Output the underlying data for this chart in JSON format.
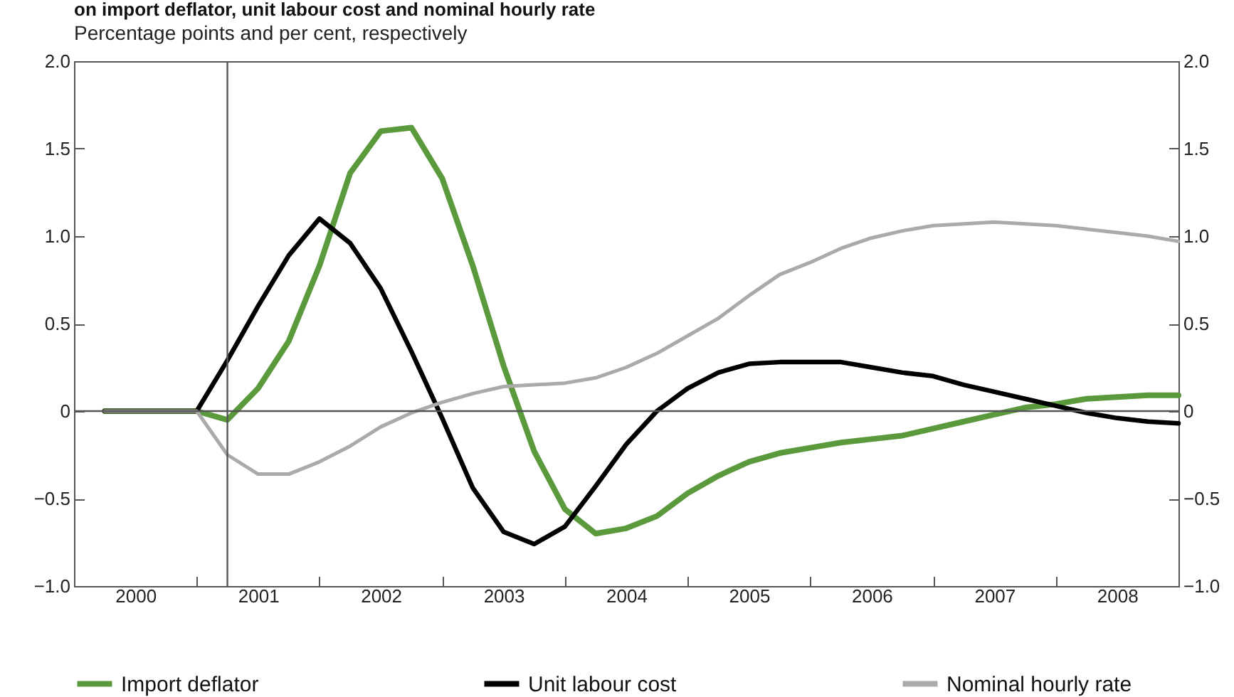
{
  "chart_data": {
    "type": "line",
    "title": "on import deflator, unit labour cost and nominal hourly rate",
    "subtitle": "Percentage points and per cent, respectively",
    "x": [
      2000.25,
      2000.5,
      2000.75,
      2001,
      2001.25,
      2001.5,
      2001.75,
      2002,
      2002.25,
      2002.5,
      2002.75,
      2003,
      2003.25,
      2003.5,
      2003.75,
      2004,
      2004.25,
      2004.5,
      2004.75,
      2005,
      2005.25,
      2005.5,
      2005.75,
      2006,
      2006.25,
      2006.5,
      2006.75,
      2007,
      2007.25,
      2007.5,
      2007.75,
      2008,
      2008.25,
      2008.5,
      2008.75,
      2009
    ],
    "series": [
      {
        "name": "Import deflator",
        "color": "#5b9a3c",
        "values": [
          0,
          0,
          0,
          0,
          -0.05,
          0.13,
          0.4,
          0.83,
          1.36,
          1.6,
          1.62,
          1.33,
          0.83,
          0.26,
          -0.23,
          -0.56,
          -0.7,
          -0.67,
          -0.6,
          -0.47,
          -0.37,
          -0.29,
          -0.24,
          -0.21,
          -0.18,
          -0.16,
          -0.14,
          -0.1,
          -0.06,
          -0.02,
          0.02,
          0.04,
          0.07,
          0.08,
          0.09,
          0.09
        ]
      },
      {
        "name": "Unit labour cost",
        "color": "#000000",
        "values": [
          0,
          0,
          0,
          0,
          0.29,
          0.6,
          0.89,
          1.1,
          0.96,
          0.7,
          0.34,
          -0.04,
          -0.44,
          -0.69,
          -0.76,
          -0.66,
          -0.43,
          -0.19,
          0,
          0.13,
          0.22,
          0.27,
          0.28,
          0.28,
          0.28,
          0.25,
          0.22,
          0.2,
          0.15,
          0.11,
          0.07,
          0.03,
          -0.01,
          -0.04,
          -0.06,
          -0.07
        ]
      },
      {
        "name": "Nominal hourly rate",
        "color": "#aaaaaa",
        "values": [
          0,
          0,
          0,
          0,
          -0.25,
          -0.36,
          -0.36,
          -0.29,
          -0.2,
          -0.09,
          -0.01,
          0.05,
          0.1,
          0.14,
          0.15,
          0.16,
          0.19,
          0.25,
          0.33,
          0.43,
          0.53,
          0.66,
          0.78,
          0.85,
          0.93,
          0.99,
          1.03,
          1.06,
          1.07,
          1.08,
          1.07,
          1.06,
          1.04,
          1.02,
          1.0,
          0.97
        ]
      }
    ],
    "xlim": [
      2000,
      2009
    ],
    "xticks": [
      {
        "value": 2000.5,
        "label": "2000"
      },
      {
        "value": 2001,
        "label": null
      },
      {
        "value": 2001.5,
        "label": "2001"
      },
      {
        "value": 2002,
        "label": null
      },
      {
        "value": 2002.5,
        "label": "2002"
      },
      {
        "value": 2003,
        "label": null
      },
      {
        "value": 2003.5,
        "label": "2003"
      },
      {
        "value": 2004,
        "label": null
      },
      {
        "value": 2004.5,
        "label": "2004"
      },
      {
        "value": 2005,
        "label": null
      },
      {
        "value": 2005.5,
        "label": "2005"
      },
      {
        "value": 2006,
        "label": null
      },
      {
        "value": 2006.5,
        "label": "2006"
      },
      {
        "value": 2007,
        "label": null
      },
      {
        "value": 2007.5,
        "label": "2007"
      },
      {
        "value": 2008,
        "label": null
      },
      {
        "value": 2008.5,
        "label": "2008"
      }
    ],
    "ylim": [
      -1.0,
      2.0
    ],
    "yticks": [
      {
        "value": -1.0,
        "label": "−1.0"
      },
      {
        "value": -0.5,
        "label": "−0.5"
      },
      {
        "value": 0,
        "label": "0"
      },
      {
        "value": 0.5,
        "label": "0.5"
      },
      {
        "value": 1.0,
        "label": "1.0"
      },
      {
        "value": 1.5,
        "label": "1.5"
      },
      {
        "value": 2.0,
        "label": "2.0"
      }
    ],
    "y2lim": [
      -1.0,
      2.0
    ],
    "y2ticks": [
      {
        "value": -1.0,
        "label": "−1.0"
      },
      {
        "value": -0.5,
        "label": "−0.5"
      },
      {
        "value": 0,
        "label": "0"
      },
      {
        "value": 0.5,
        "label": "0.5"
      },
      {
        "value": 1.0,
        "label": "1.0"
      },
      {
        "value": 1.5,
        "label": "1.5"
      },
      {
        "value": 2.0,
        "label": "2.0"
      }
    ],
    "ref_lines": [
      {
        "axis": "x",
        "value": 2001.25,
        "color": "#555555"
      },
      {
        "axis": "y",
        "value": 0,
        "color": "#555555"
      }
    ],
    "grid": false,
    "legend": "bottom",
    "marker": "none",
    "line_style": "solid"
  }
}
